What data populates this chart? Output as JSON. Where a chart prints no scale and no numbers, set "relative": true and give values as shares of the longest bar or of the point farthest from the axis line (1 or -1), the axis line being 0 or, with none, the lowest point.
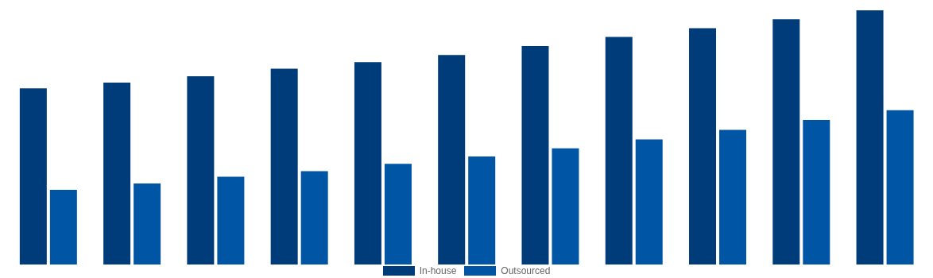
{
  "chart_data": {
    "type": "bar",
    "relative": true,
    "categories": [
      null,
      null,
      null,
      null,
      null,
      null,
      null,
      null,
      null,
      null,
      null
    ],
    "series": [
      {
        "name": "In-house",
        "color": "#003b7a",
        "values": [
          0.693,
          0.716,
          0.741,
          0.77,
          0.796,
          0.824,
          0.859,
          0.895,
          0.93,
          0.965,
          1
        ]
      },
      {
        "name": "Outsourced",
        "color": "#0055a5",
        "values": [
          0.294,
          0.319,
          0.345,
          0.367,
          0.396,
          0.425,
          0.457,
          0.492,
          0.53,
          0.569,
          0.607
        ]
      }
    ],
    "legend": "bottom",
    "grid": false
  }
}
